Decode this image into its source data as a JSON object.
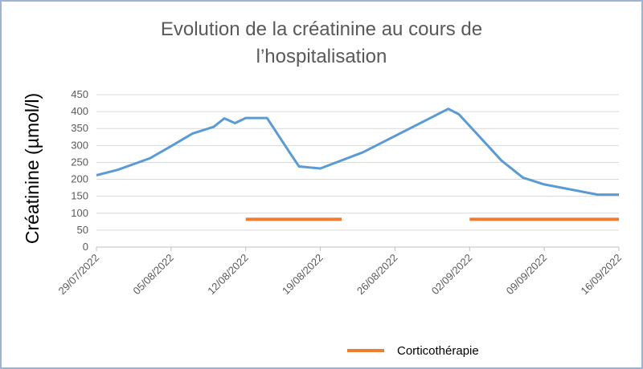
{
  "chart_data": {
    "type": "line",
    "title_line1": "Evolution de la créatinine au cours de",
    "title_line2": "l’hospitalisation",
    "ylabel": "Créatinine (µmol/l)",
    "xlabel": "",
    "ylim": [
      0,
      450
    ],
    "yticks": [
      0,
      50,
      100,
      150,
      200,
      250,
      300,
      350,
      400,
      450
    ],
    "xrange": [
      "2022-07-29",
      "2022-09-16"
    ],
    "xtick_labels": [
      "29/07/2022",
      "05/08/2022",
      "12/08/2022",
      "19/08/2022",
      "26/08/2022",
      "02/09/2022",
      "09/09/2022",
      "16/09/2022"
    ],
    "grid": true,
    "colors": {
      "creatinine": "#5b9bd5",
      "corticotherapie": "#ed7d31"
    },
    "series": [
      {
        "key": "creatinine",
        "x": [
          "2022-07-29",
          "2022-07-31",
          "2022-08-03",
          "2022-08-05",
          "2022-08-07",
          "2022-08-09",
          "2022-08-10",
          "2022-08-11",
          "2022-08-12",
          "2022-08-14",
          "2022-08-16",
          "2022-08-17",
          "2022-08-19",
          "2022-08-23",
          "2022-08-31",
          "2022-09-01",
          "2022-09-05",
          "2022-09-07",
          "2022-09-09",
          "2022-09-14",
          "2022-09-16"
        ],
        "y": [
          212,
          228,
          262,
          298,
          335,
          355,
          380,
          366,
          381,
          381,
          285,
          238,
          232,
          280,
          408,
          392,
          255,
          205,
          185,
          155,
          155
        ]
      },
      {
        "key": "corticotherapie",
        "name": "Corticothérapie",
        "x": [
          "2022-08-12",
          "2022-08-21"
        ],
        "y": [
          82,
          82
        ]
      },
      {
        "key": "corticotherapie-2",
        "x": [
          "2022-09-02",
          "2022-09-16"
        ],
        "y": [
          82,
          82
        ]
      }
    ],
    "legend": {
      "position": "bottom",
      "label": "Corticothérapie"
    }
  }
}
